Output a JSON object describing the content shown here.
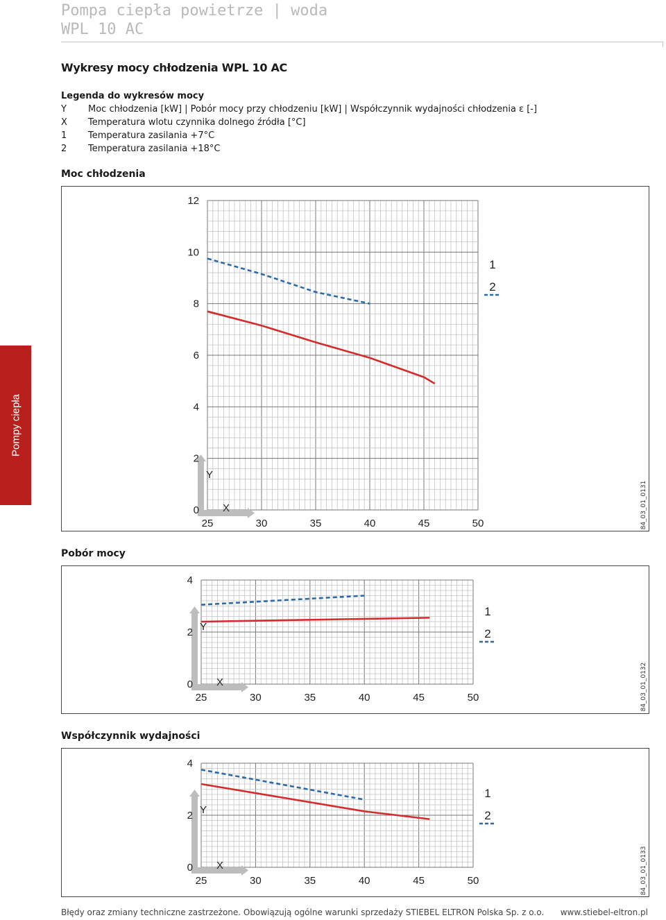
{
  "header": {
    "line1": "Pompa ciepła powietrze | woda",
    "line2": "WPL 10 AC"
  },
  "title": "Wykresy mocy chłodzenia WPL 10 AC",
  "legend": {
    "heading": "Legenda do wykresów mocy",
    "items": [
      {
        "key": "Y",
        "text": "Moc chłodzenia [kW] | Pobór mocy przy chłodzeniu [kW] | Współczynnik wydajności chłodzenia ε [-]"
      },
      {
        "key": "X",
        "text": "Temperatura wlotu czynnika dolnego źródła [°C]"
      },
      {
        "key": "1",
        "text": "Temperatura zasilania +7°C"
      },
      {
        "key": "2",
        "text": "Temperatura zasilania +18°C"
      }
    ]
  },
  "side_tab": "Pompy ciepła",
  "colors": {
    "series1": "#d42b2b",
    "series2": "#2a6aa8",
    "grid": "#9a9a9a",
    "tab": "#b8201e"
  },
  "chart_data": [
    {
      "type": "line",
      "title": "Moc chłodzenia",
      "code": "84_03_01_0131",
      "xlabel": "X",
      "ylabel": "Y",
      "xlim": [
        25,
        50
      ],
      "ylim": [
        0,
        12
      ],
      "xticks": [
        25,
        30,
        35,
        40,
        45,
        50
      ],
      "yticks": [
        0,
        2,
        4,
        6,
        8,
        10,
        12
      ],
      "grid": true,
      "legend_position": "right",
      "series": [
        {
          "name": "1",
          "x": [
            25,
            30,
            35,
            40,
            45,
            46
          ],
          "y": [
            7.7,
            7.15,
            6.5,
            5.9,
            5.15,
            4.9
          ]
        },
        {
          "name": "2",
          "x": [
            25,
            30,
            35,
            40
          ],
          "y": [
            9.75,
            9.15,
            8.45,
            8.0
          ]
        }
      ]
    },
    {
      "type": "line",
      "title": "Pobór mocy",
      "code": "84_03_01_0132",
      "xlabel": "X",
      "ylabel": "Y",
      "xlim": [
        25,
        50
      ],
      "ylim": [
        0,
        4
      ],
      "xticks": [
        25,
        30,
        35,
        40,
        45,
        50
      ],
      "yticks": [
        0,
        2,
        4
      ],
      "grid": true,
      "legend_position": "right",
      "series": [
        {
          "name": "1",
          "x": [
            25,
            46
          ],
          "y": [
            2.4,
            2.55
          ]
        },
        {
          "name": "2",
          "x": [
            25,
            40
          ],
          "y": [
            3.05,
            3.4
          ]
        }
      ]
    },
    {
      "type": "line",
      "title": "Współczynnik wydajności",
      "code": "84_03_01_0133",
      "xlabel": "X",
      "ylabel": "Y",
      "xlim": [
        25,
        50
      ],
      "ylim": [
        0,
        4
      ],
      "xticks": [
        25,
        30,
        35,
        40,
        45,
        50
      ],
      "yticks": [
        0,
        2,
        4
      ],
      "grid": true,
      "legend_position": "right",
      "series": [
        {
          "name": "1",
          "x": [
            25,
            40,
            46
          ],
          "y": [
            3.2,
            2.15,
            1.85
          ]
        },
        {
          "name": "2",
          "x": [
            25,
            40
          ],
          "y": [
            3.75,
            2.6
          ]
        }
      ]
    }
  ],
  "footer": {
    "left": "Błędy oraz zmiany techniczne zastrzeżone. Obowiązują ogólne warunki sprzedaży STIEBEL ELTRON Polska Sp. z o.o.",
    "right": "www.stiebel-eltron.pl"
  }
}
